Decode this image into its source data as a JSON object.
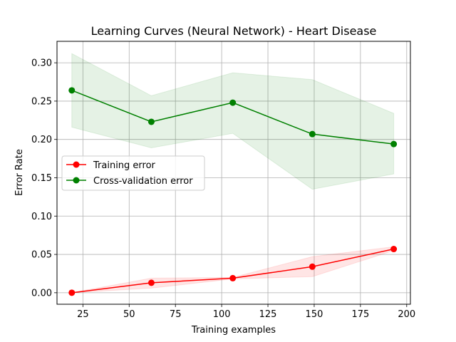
{
  "chart_data": {
    "type": "line",
    "title": "Learning Curves (Neural Network) - Heart Disease",
    "xlabel": "Training examples",
    "ylabel": "Error Rate",
    "xlim": [
      11,
      202
    ],
    "ylim": [
      -0.015,
      0.328
    ],
    "xticks": [
      25,
      50,
      75,
      100,
      125,
      150,
      175,
      200
    ],
    "yticks": [
      0.0,
      0.05,
      0.1,
      0.15,
      0.2,
      0.25,
      0.3
    ],
    "xtick_labels": [
      "25",
      "50",
      "75",
      "100",
      "125",
      "150",
      "175",
      "200"
    ],
    "ytick_labels": [
      "0.00",
      "0.05",
      "0.10",
      "0.15",
      "0.20",
      "0.25",
      "0.30"
    ],
    "grid": true,
    "legend_position": "center-left",
    "x": [
      19,
      62,
      106,
      149,
      193
    ],
    "series": [
      {
        "name": "Training error",
        "color": "#ff0000",
        "values": [
          0.0,
          0.013,
          0.019,
          0.034,
          0.057
        ],
        "band_lower": [
          0.0,
          0.006,
          0.018,
          0.021,
          0.055
        ],
        "band_upper": [
          0.0,
          0.019,
          0.02,
          0.047,
          0.06
        ]
      },
      {
        "name": "Cross-validation error",
        "color": "#008000",
        "values": [
          0.264,
          0.223,
          0.248,
          0.207,
          0.194
        ],
        "band_lower": [
          0.216,
          0.189,
          0.208,
          0.135,
          0.155
        ],
        "band_upper": [
          0.312,
          0.257,
          0.287,
          0.278,
          0.234
        ]
      }
    ]
  }
}
